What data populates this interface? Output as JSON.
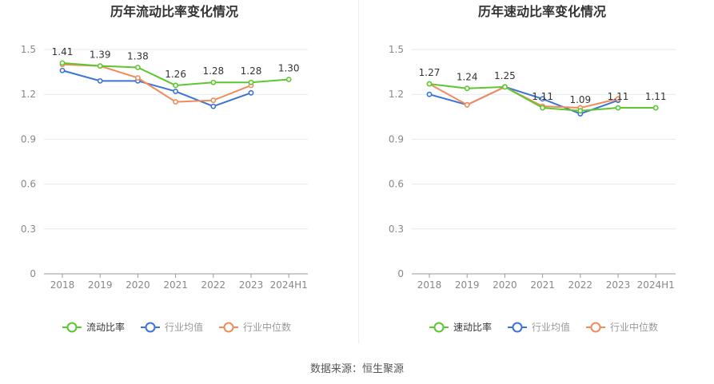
{
  "chart_data": [
    {
      "type": "line",
      "title": "历年流动比率变化情况",
      "categories": [
        "2018",
        "2019",
        "2020",
        "2021",
        "2022",
        "2023",
        "2024H1"
      ],
      "ylim": [
        0,
        1.5
      ],
      "yticks": [
        "0",
        "0.3",
        "0.6",
        "0.9",
        "1.2",
        "1.5"
      ],
      "ytick_values": [
        0,
        0.3,
        0.6,
        0.9,
        1.2,
        1.5
      ],
      "grid": true,
      "legend_position": "bottom",
      "series": [
        {
          "name": "流动比率",
          "color": "#5cc72f",
          "values": [
            1.41,
            1.39,
            1.38,
            1.26,
            1.28,
            1.28,
            1.3
          ],
          "labels": [
            "1.41",
            "1.39",
            "1.38",
            "1.26",
            "1.28",
            "1.28",
            "1.30"
          ]
        },
        {
          "name": "行业均值",
          "color": "#3d73d8",
          "values": [
            1.36,
            1.29,
            1.29,
            1.22,
            1.12,
            1.21,
            null
          ]
        },
        {
          "name": "行业中位数",
          "color": "#f08c5a",
          "values": [
            1.4,
            1.39,
            1.31,
            1.15,
            1.16,
            1.26,
            null
          ]
        }
      ]
    },
    {
      "type": "line",
      "title": "历年速动比率变化情况",
      "categories": [
        "2018",
        "2019",
        "2020",
        "2021",
        "2022",
        "2023",
        "2024H1"
      ],
      "ylim": [
        0,
        1.5
      ],
      "yticks": [
        "0",
        "0.3",
        "0.6",
        "0.9",
        "1.2",
        "1.5"
      ],
      "ytick_values": [
        0,
        0.3,
        0.6,
        0.9,
        1.2,
        1.5
      ],
      "grid": true,
      "legend_position": "bottom",
      "series": [
        {
          "name": "速动比率",
          "color": "#5cc72f",
          "values": [
            1.27,
            1.24,
            1.25,
            1.11,
            1.09,
            1.11,
            1.11
          ],
          "labels": [
            "1.27",
            "1.24",
            "1.25",
            "1.11",
            "1.09",
            "1.11",
            "1.11"
          ]
        },
        {
          "name": "行业均值",
          "color": "#3d73d8",
          "values": [
            1.2,
            1.13,
            1.25,
            1.17,
            1.07,
            1.16,
            null
          ]
        },
        {
          "name": "行业中位数",
          "color": "#f08c5a",
          "values": [
            1.27,
            1.13,
            1.25,
            1.12,
            1.11,
            1.17,
            null
          ]
        }
      ]
    }
  ],
  "footer": {
    "source": "数据来源：恒生聚源"
  },
  "colors": {
    "axis": "#999999",
    "grid": "#e6e9f2",
    "tick_text": "#888888",
    "title": "#333333",
    "label_text": "#333333"
  }
}
